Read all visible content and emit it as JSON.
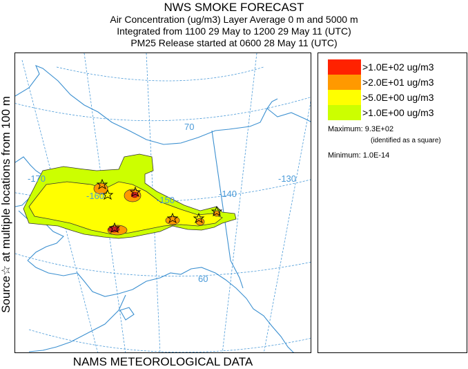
{
  "header": {
    "title": "NWS SMOKE FORECAST",
    "line2": "Air Concentration (ug/m3) Layer Average    0 m and  5000 m",
    "line3": "Integrated from 1100 29 May to 1200 29 May 11 (UTC)",
    "line4": "PM25 Release started at 0600 28 May 11 (UTC)"
  },
  "side_label": "Source☆  at multiple locations  from   100 m",
  "bottom_label": "NAMS METEOROLOGICAL DATA",
  "map": {
    "graticule_labels": [
      "70",
      "-170",
      "-160",
      "-150",
      "-140",
      "-130",
      "60"
    ],
    "colors": {
      "coast": "#3a8fd0",
      "graticule": "#4a9ad8",
      "contour": "#333333",
      "dark_red": "#cc2222"
    },
    "source_icon": "star-icon"
  },
  "legend": {
    "items": [
      {
        "label": ">1.0E+02 ug/m3",
        "color": "#ff2200"
      },
      {
        "label": ">2.0E+01 ug/m3",
        "color": "#ff9900"
      },
      {
        "label": ">5.0E+00 ug/m3",
        "color": "#ffff00"
      },
      {
        "label": ">1.0E+00 ug/m3",
        "color": "#ccff00"
      }
    ],
    "maximum": "Maximum: 9.3E+02",
    "maximum_note": "(identified as a square)",
    "minimum": "Minimum: 1.0E-14"
  }
}
